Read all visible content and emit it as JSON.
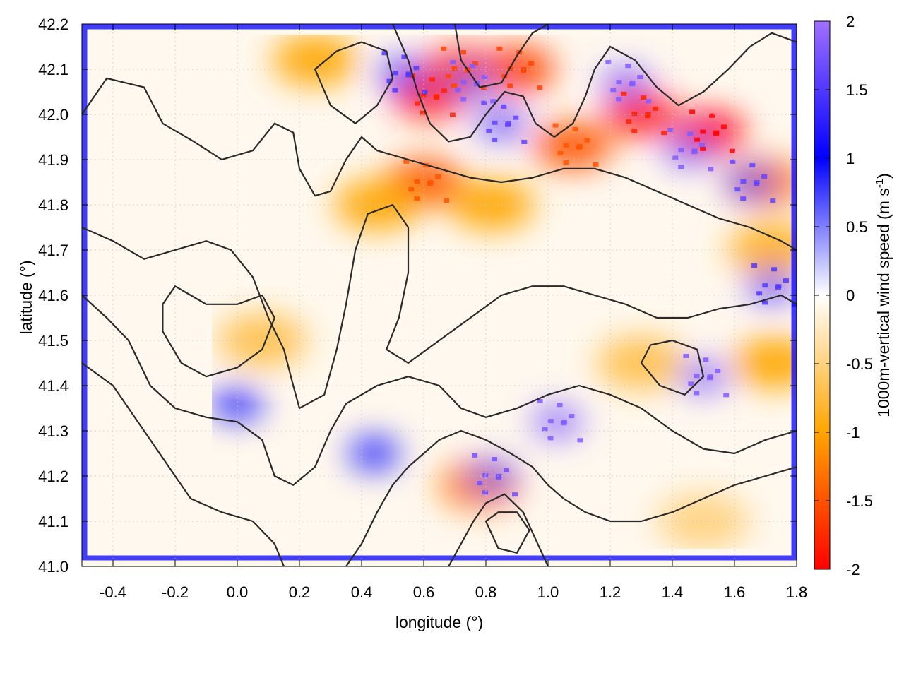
{
  "chart_data": {
    "type": "heatmap",
    "xlabel": "longitude (°)",
    "ylabel": "latitude (°)",
    "colorbar_label_main": "1000m-vertical wind speed (m s",
    "colorbar_label_sup": "-1",
    "colorbar_label_end": ")",
    "xlim": [
      -0.5,
      1.8
    ],
    "ylim": [
      41.0,
      42.2
    ],
    "clim": [
      -2,
      2
    ],
    "grid": true,
    "xticks": [
      -0.4,
      -0.2,
      0.0,
      0.2,
      0.4,
      0.6,
      0.8,
      1.0,
      1.2,
      1.4,
      1.6,
      1.8
    ],
    "xtick_labels": [
      "-0.4",
      "-0.2",
      "0.0",
      "0.2",
      "0.4",
      "0.6",
      "0.8",
      "1.0",
      "1.2",
      "1.4",
      "1.6",
      "1.8"
    ],
    "yticks": [
      41.0,
      41.1,
      41.2,
      41.3,
      41.4,
      41.5,
      41.6,
      41.7,
      41.8,
      41.9,
      42.0,
      42.1,
      42.2
    ],
    "ytick_labels": [
      "41.0",
      "41.1",
      "41.2",
      "41.3",
      "41.4",
      "41.5",
      "41.6",
      "41.7",
      "41.8",
      "41.9",
      "42.0",
      "42.1",
      "42.2"
    ],
    "cticks": [
      2,
      1.5,
      1,
      0.5,
      0,
      -0.5,
      -1,
      -1.5,
      -2
    ],
    "ctick_labels": [
      "2",
      "1.5",
      "1",
      "0.5",
      "0",
      "-0.5",
      "-1",
      "-1.5",
      "-2"
    ],
    "colormap": [
      {
        "value": -2,
        "color": "#ff0000"
      },
      {
        "value": -1,
        "color": "#ffa500"
      },
      {
        "value": 0,
        "color": "#ffffff"
      },
      {
        "value": 1,
        "color": "#0000ff"
      },
      {
        "value": 2,
        "color": "#a070ff"
      }
    ],
    "field_features": [
      {
        "lon": 0.62,
        "lat": 42.04,
        "w": -1.8
      },
      {
        "lon": 0.72,
        "lat": 42.1,
        "w": -1.6
      },
      {
        "lon": 0.9,
        "lat": 42.1,
        "w": -1.6
      },
      {
        "lon": 0.25,
        "lat": 42.12,
        "w": -1.0
      },
      {
        "lon": 0.6,
        "lat": 41.85,
        "w": -1.5
      },
      {
        "lon": 0.45,
        "lat": 41.8,
        "w": -1.0
      },
      {
        "lon": 0.82,
        "lat": 41.8,
        "w": -1.0
      },
      {
        "lon": 1.08,
        "lat": 41.93,
        "w": -1.5
      },
      {
        "lon": 1.3,
        "lat": 42.0,
        "w": -1.8
      },
      {
        "lon": 1.52,
        "lat": 41.96,
        "w": -2.0
      },
      {
        "lon": 1.7,
        "lat": 41.85,
        "w": -1.2
      },
      {
        "lon": 1.72,
        "lat": 41.7,
        "w": -0.9
      },
      {
        "lon": 1.73,
        "lat": 41.45,
        "w": -1.0
      },
      {
        "lon": 0.08,
        "lat": 41.5,
        "w": -0.7
      },
      {
        "lon": 1.3,
        "lat": 41.45,
        "w": -0.7
      },
      {
        "lon": 0.78,
        "lat": 41.18,
        "w": -1.2
      },
      {
        "lon": 1.5,
        "lat": 41.1,
        "w": -0.5
      },
      {
        "lon": 0.53,
        "lat": 42.09,
        "w": 1.5
      },
      {
        "lon": 0.75,
        "lat": 42.07,
        "w": 1.8
      },
      {
        "lon": 0.85,
        "lat": 41.98,
        "w": 1.6
      },
      {
        "lon": 1.25,
        "lat": 42.07,
        "w": 1.8
      },
      {
        "lon": 1.45,
        "lat": 41.92,
        "w": 1.8
      },
      {
        "lon": 1.65,
        "lat": 41.85,
        "w": 1.6
      },
      {
        "lon": 1.72,
        "lat": 41.62,
        "w": 1.5
      },
      {
        "lon": 1.5,
        "lat": 41.42,
        "w": 1.8
      },
      {
        "lon": 1.03,
        "lat": 41.32,
        "w": 1.8
      },
      {
        "lon": 0.82,
        "lat": 41.2,
        "w": 1.7
      },
      {
        "lon": 0.44,
        "lat": 41.25,
        "w": 1.0
      },
      {
        "lon": 0.0,
        "lat": 41.36,
        "w": 1.0
      }
    ],
    "contours": [
      [
        [
          -0.5,
          42.0
        ],
        [
          -0.42,
          42.08
        ],
        [
          -0.3,
          42.06
        ],
        [
          -0.24,
          41.98
        ],
        [
          -0.14,
          41.94
        ],
        [
          -0.05,
          41.9
        ],
        [
          0.05,
          41.92
        ],
        [
          0.12,
          41.98
        ],
        [
          0.18,
          41.96
        ],
        [
          0.2,
          41.88
        ],
        [
          0.25,
          41.82
        ],
        [
          0.3,
          41.83
        ],
        [
          0.35,
          41.9
        ],
        [
          0.4,
          41.95
        ],
        [
          0.45,
          41.92
        ],
        [
          0.55,
          41.9
        ],
        [
          0.65,
          41.88
        ],
        [
          0.75,
          41.86
        ],
        [
          0.85,
          41.85
        ],
        [
          0.95,
          41.86
        ],
        [
          1.05,
          41.88
        ],
        [
          1.15,
          41.88
        ],
        [
          1.25,
          41.86
        ],
        [
          1.35,
          41.83
        ],
        [
          1.45,
          41.8
        ],
        [
          1.55,
          41.77
        ],
        [
          1.65,
          41.75
        ],
        [
          1.75,
          41.72
        ],
        [
          1.8,
          41.7
        ]
      ],
      [
        [
          -0.5,
          41.75
        ],
        [
          -0.4,
          41.72
        ],
        [
          -0.3,
          41.68
        ],
        [
          -0.2,
          41.7
        ],
        [
          -0.1,
          41.72
        ],
        [
          -0.02,
          41.7
        ],
        [
          0.05,
          41.64
        ],
        [
          0.1,
          41.55
        ],
        [
          0.15,
          41.48
        ],
        [
          0.18,
          41.4
        ],
        [
          0.2,
          41.35
        ],
        [
          0.28,
          41.38
        ],
        [
          0.32,
          41.48
        ],
        [
          0.35,
          41.58
        ],
        [
          0.38,
          41.7
        ],
        [
          0.42,
          41.78
        ],
        [
          0.5,
          41.8
        ],
        [
          0.55,
          41.75
        ],
        [
          0.55,
          41.65
        ],
        [
          0.52,
          41.55
        ],
        [
          0.48,
          41.48
        ],
        [
          0.55,
          41.45
        ],
        [
          0.65,
          41.5
        ],
        [
          0.75,
          41.55
        ],
        [
          0.85,
          41.6
        ],
        [
          0.95,
          41.62
        ],
        [
          1.05,
          41.62
        ],
        [
          1.15,
          41.6
        ],
        [
          1.25,
          41.58
        ],
        [
          1.35,
          41.55
        ],
        [
          1.45,
          41.55
        ],
        [
          1.55,
          41.57
        ],
        [
          1.65,
          41.58
        ],
        [
          1.75,
          41.6
        ],
        [
          1.8,
          41.58
        ]
      ],
      [
        [
          -0.5,
          41.6
        ],
        [
          -0.42,
          41.55
        ],
        [
          -0.35,
          41.5
        ],
        [
          -0.28,
          41.4
        ],
        [
          -0.2,
          41.35
        ],
        [
          -0.1,
          41.33
        ],
        [
          0.0,
          41.32
        ],
        [
          0.08,
          41.28
        ],
        [
          0.12,
          41.2
        ],
        [
          0.18,
          41.18
        ],
        [
          0.25,
          41.22
        ],
        [
          0.3,
          41.3
        ],
        [
          0.35,
          41.36
        ],
        [
          0.45,
          41.4
        ],
        [
          0.55,
          41.42
        ],
        [
          0.65,
          41.4
        ],
        [
          0.72,
          41.35
        ],
        [
          0.8,
          41.33
        ],
        [
          0.9,
          41.35
        ],
        [
          1.0,
          41.38
        ],
        [
          1.1,
          41.4
        ],
        [
          1.2,
          41.38
        ],
        [
          1.3,
          41.35
        ],
        [
          1.4,
          41.3
        ],
        [
          1.5,
          41.26
        ],
        [
          1.6,
          41.25
        ],
        [
          1.7,
          41.28
        ],
        [
          1.8,
          41.3
        ]
      ],
      [
        [
          -0.5,
          41.45
        ],
        [
          -0.4,
          41.4
        ],
        [
          -0.3,
          41.3
        ],
        [
          -0.22,
          41.22
        ],
        [
          -0.15,
          41.15
        ],
        [
          -0.05,
          41.12
        ],
        [
          0.05,
          41.1
        ],
        [
          0.12,
          41.05
        ],
        [
          0.15,
          41.0
        ]
      ],
      [
        [
          0.35,
          41.0
        ],
        [
          0.4,
          41.05
        ],
        [
          0.45,
          41.12
        ],
        [
          0.5,
          41.18
        ],
        [
          0.55,
          41.22
        ],
        [
          0.6,
          41.25
        ],
        [
          0.65,
          41.28
        ],
        [
          0.72,
          41.3
        ],
        [
          0.8,
          41.28
        ],
        [
          0.88,
          41.25
        ],
        [
          0.95,
          41.22
        ],
        [
          1.0,
          41.18
        ],
        [
          1.05,
          41.15
        ],
        [
          1.12,
          41.12
        ],
        [
          1.2,
          41.1
        ],
        [
          1.3,
          41.1
        ],
        [
          1.4,
          41.12
        ],
        [
          1.5,
          41.15
        ],
        [
          1.6,
          41.18
        ],
        [
          1.7,
          41.2
        ],
        [
          1.8,
          41.22
        ]
      ],
      [
        [
          0.68,
          41.0
        ],
        [
          0.72,
          41.05
        ],
        [
          0.76,
          41.1
        ],
        [
          0.8,
          41.14
        ],
        [
          0.86,
          41.16
        ],
        [
          0.92,
          41.12
        ],
        [
          0.96,
          41.06
        ],
        [
          1.0,
          41.0
        ]
      ],
      [
        [
          0.5,
          42.2
        ],
        [
          0.55,
          42.12
        ],
        [
          0.58,
          42.05
        ],
        [
          0.62,
          41.98
        ],
        [
          0.68,
          41.94
        ],
        [
          0.75,
          41.95
        ],
        [
          0.8,
          42.0
        ],
        [
          0.86,
          42.05
        ],
        [
          0.92,
          42.04
        ],
        [
          0.96,
          41.98
        ],
        [
          1.02,
          41.95
        ],
        [
          1.08,
          41.98
        ],
        [
          1.12,
          42.04
        ],
        [
          1.15,
          42.1
        ],
        [
          1.2,
          42.15
        ],
        [
          1.28,
          42.12
        ],
        [
          1.35,
          42.06
        ],
        [
          1.42,
          42.02
        ],
        [
          1.5,
          42.05
        ],
        [
          1.58,
          42.1
        ],
        [
          1.65,
          42.15
        ],
        [
          1.72,
          42.18
        ],
        [
          1.8,
          42.16
        ]
      ],
      [
        [
          0.7,
          42.2
        ],
        [
          0.72,
          42.12
        ],
        [
          0.78,
          42.06
        ],
        [
          0.85,
          42.07
        ],
        [
          0.9,
          42.13
        ],
        [
          0.95,
          42.18
        ],
        [
          1.0,
          42.2
        ]
      ],
      [
        [
          0.25,
          42.1
        ],
        [
          0.3,
          42.02
        ],
        [
          0.38,
          41.98
        ],
        [
          0.45,
          42.02
        ],
        [
          0.5,
          42.08
        ],
        [
          0.48,
          42.14
        ],
        [
          0.4,
          42.16
        ],
        [
          0.32,
          42.14
        ],
        [
          0.25,
          42.1
        ]
      ],
      [
        [
          -0.2,
          41.62
        ],
        [
          -0.1,
          41.58
        ],
        [
          0.0,
          41.58
        ],
        [
          0.08,
          41.6
        ],
        [
          0.12,
          41.55
        ],
        [
          0.08,
          41.48
        ],
        [
          0.0,
          41.44
        ],
        [
          -0.1,
          41.42
        ],
        [
          -0.18,
          41.45
        ],
        [
          -0.24,
          41.52
        ],
        [
          -0.24,
          41.58
        ],
        [
          -0.2,
          41.62
        ]
      ],
      [
        [
          0.8,
          41.1
        ],
        [
          0.84,
          41.04
        ],
        [
          0.9,
          41.03
        ],
        [
          0.94,
          41.08
        ],
        [
          0.9,
          41.12
        ],
        [
          0.84,
          41.12
        ],
        [
          0.8,
          41.1
        ]
      ],
      [
        [
          1.3,
          41.45
        ],
        [
          1.36,
          41.4
        ],
        [
          1.44,
          41.38
        ],
        [
          1.5,
          41.42
        ],
        [
          1.48,
          41.48
        ],
        [
          1.4,
          41.5
        ],
        [
          1.33,
          41.49
        ],
        [
          1.3,
          41.45
        ]
      ]
    ]
  }
}
